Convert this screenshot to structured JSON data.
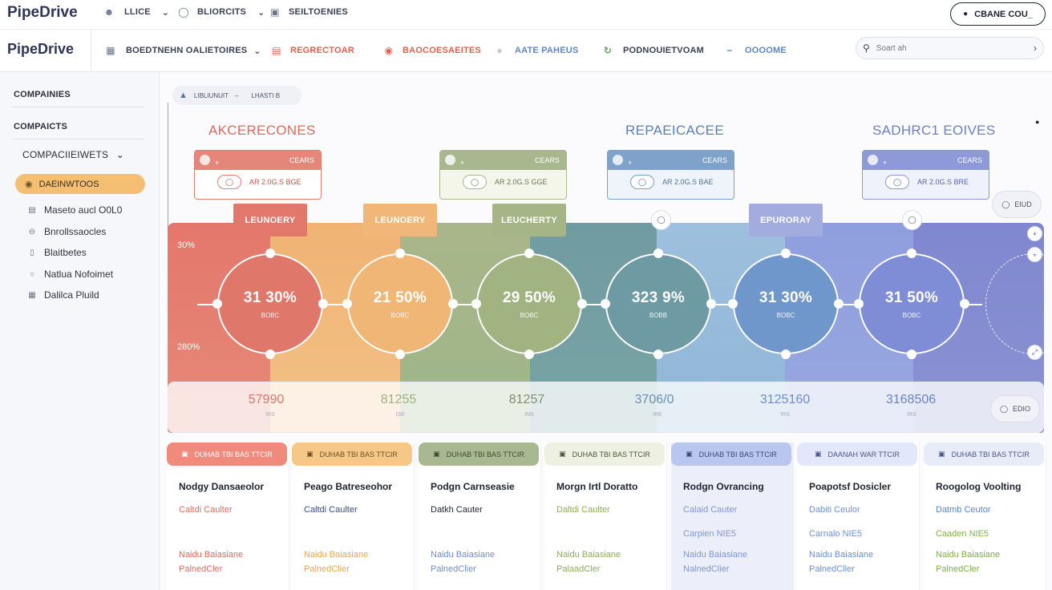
{
  "topbar": {
    "brand": "PipeDrive",
    "nav": [
      {
        "label": "LLICE",
        "icon": "user-icon"
      },
      {
        "label": "BLIORCITS",
        "icon": "lightbulb-icon"
      },
      {
        "label": "SEILTOENIES",
        "icon": "monitor-icon"
      }
    ],
    "create_label": "CBANE COU_"
  },
  "header": {
    "brand": "PipeDrive",
    "nav": [
      {
        "label": "BOEDTNEHN OALIETOIRES",
        "icon": "grid-icon",
        "color": "#3a3f55"
      },
      {
        "label": "REGRECTOAR",
        "icon": "tag-icon",
        "color": "#e0614f"
      },
      {
        "label": "BAOCOESAEITES",
        "icon": "pin-icon",
        "color": "#e0614f"
      },
      {
        "label": "AATE PAHEUS",
        "icon": "dot-icon",
        "color": "#5f86c9"
      },
      {
        "label": "PODNOUIETVOAM",
        "icon": "refresh-icon",
        "color": "#3a3f55"
      },
      {
        "label": "OOOOME",
        "icon": "minus-icon",
        "color": "#5f86c9"
      }
    ],
    "search_placeholder": "Soart ah"
  },
  "sidebar": {
    "section1": "COMPAINIES",
    "section2": "COMPAICTS",
    "dropdown": "COMPACIIEIWETS",
    "active": "DAEINWTOOS",
    "items": [
      {
        "label": "Maseto aucl O0L0",
        "icon": "doc-icon"
      },
      {
        "label": "Bnrollssaocles",
        "icon": "minus-circle-icon"
      },
      {
        "label": "Blaitbetes",
        "icon": "file-icon"
      },
      {
        "label": "Natlua Nofoimet",
        "icon": "circle-icon"
      },
      {
        "label": "Dalilca Pluild",
        "icon": "grid-icon"
      }
    ]
  },
  "main": {
    "filter": {
      "left": "LIBLIUNUIT",
      "right": "LHASTI B"
    },
    "stage_titles": [
      "AKCERECONES",
      "REPAEICACEE",
      "SADHRC1 EOIVES"
    ],
    "mini_cards": [
      {
        "header": "CEARS",
        "value": "AR 2.0G.S BGE"
      },
      {
        "header": "CEARS",
        "value": "AR 2.0G.S GGE"
      },
      {
        "header": "CEARS",
        "value": "AR 2.0G.S BAE"
      },
      {
        "header": "CEARS",
        "value": "AR 2.0G.S BRE"
      }
    ],
    "tabs": [
      "LEUNOERY",
      "LEUNOERY",
      "LEUCHERTY",
      "EPURORAY"
    ],
    "axis_labels": [
      "30%",
      "280%"
    ],
    "circles": [
      {
        "value": "31 30%",
        "sub": "BOBC"
      },
      {
        "value": "21 50%",
        "sub": "BOBC"
      },
      {
        "value": "29 50%",
        "sub": "BOBC"
      },
      {
        "value": "323 9%",
        "sub": "BOBB"
      },
      {
        "value": "31 30%",
        "sub": "BOBC"
      },
      {
        "value": "31 50%",
        "sub": "BOBC"
      }
    ],
    "bottom_numbers": [
      {
        "value": "57990",
        "sub": "IRS",
        "color": "#d9776f"
      },
      {
        "value": "81255",
        "sub": "ISE",
        "color": "#9fb07d"
      },
      {
        "value": "81257",
        "sub": "INS",
        "color": "#7f8f73"
      },
      {
        "value": "3706/0",
        "sub": "IRE",
        "color": "#6b8fb0"
      },
      {
        "value": "3125160",
        "sub": "IRS",
        "color": "#6a8ec9"
      },
      {
        "value": "3168506",
        "sub": "IRS",
        "color": "#6a84c2"
      }
    ],
    "chip_top": "EIUD",
    "chip_bottom": "EDIO"
  },
  "columns": [
    {
      "header": "DUHAB TBI BAS TTCIR",
      "title": "Nodgy Dansaeolor",
      "l1": "Caltdi Caulter",
      "l2": "",
      "l3": "Naidu Baiasiane",
      "l4": "PalnedCler",
      "accent": "#e26a5f",
      "hdr_bg": "#ef8a7d",
      "hdr_fg": "#ffffff",
      "bg": "#ffffff"
    },
    {
      "header": "DUHAB TBI BAS TTCIR",
      "title": "Peago Batreseohor",
      "l1": "Caltdi Caulter",
      "l2": "",
      "l3": "Naidu Baiasiane",
      "l4": "PalnedClier",
      "accent": "#e9a651",
      "hdr_bg": "#f6c887",
      "hdr_fg": "#6e5025",
      "bg": "#ffffff",
      "l1color": "#3b4b83"
    },
    {
      "header": "DUHAB TBI BAS TTCIR",
      "title": "Podgn Carnseasie",
      "l1": "Datkh Cauter",
      "l2": "",
      "l3": "Naidu Baiasiane",
      "l4": "PalnedClier",
      "accent": "#6f8fc8",
      "hdr_bg": "#a8b890",
      "hdr_fg": "#3e4b2b",
      "bg": "#ffffff",
      "l1color": "#1f2333"
    },
    {
      "header": "DUHAB TBI BAS TTCIR",
      "title": "Morgn Irtl Doratto",
      "l1": "Daltdi Caulter",
      "l2": "",
      "l3": "Naidu Baiasiane",
      "l4": "PalaadCler",
      "accent": "#8cae58",
      "hdr_bg": "#eef1e2",
      "hdr_fg": "#4b553a",
      "bg": "#ffffff"
    },
    {
      "header": "DUHAB TBI BAS TTCIR",
      "title": "Rodgn Ovrancing",
      "l1": "Calaid Cauter",
      "l2": "Carpien NIE5",
      "l3": "Naidu Baiasiane",
      "l4": "NalnedClier",
      "accent": "#7e97d6",
      "hdr_bg": "#b9c6ee",
      "hdr_fg": "#3e4a78",
      "bg": "#eceef9"
    },
    {
      "header": "DAANAH WAR TTCIR",
      "title": "Poapotsf Dosicler",
      "l1": "Dabiti Ceulor",
      "l2": "Carnalo NIE5",
      "l3": "Naidu Baiasiane",
      "l4": "PalnedClier",
      "accent": "#6e90d4",
      "hdr_bg": "#e3e7fa",
      "hdr_fg": "#4a5686",
      "bg": "#ffffff"
    },
    {
      "header": "DUHAB TBI BAS TTCIR",
      "title": "Roogolog Voolting",
      "l1": "Datmb Ceutor",
      "l2": "Caaden NIE5",
      "l3": "Naidu Baiasiane",
      "l4": "PalnedCler",
      "accent": "#7fae4a",
      "hdr_bg": "#e7ecf8",
      "hdr_fg": "#4a5686",
      "bg": "#ffffff",
      "l1color": "#5b83c7"
    }
  ]
}
